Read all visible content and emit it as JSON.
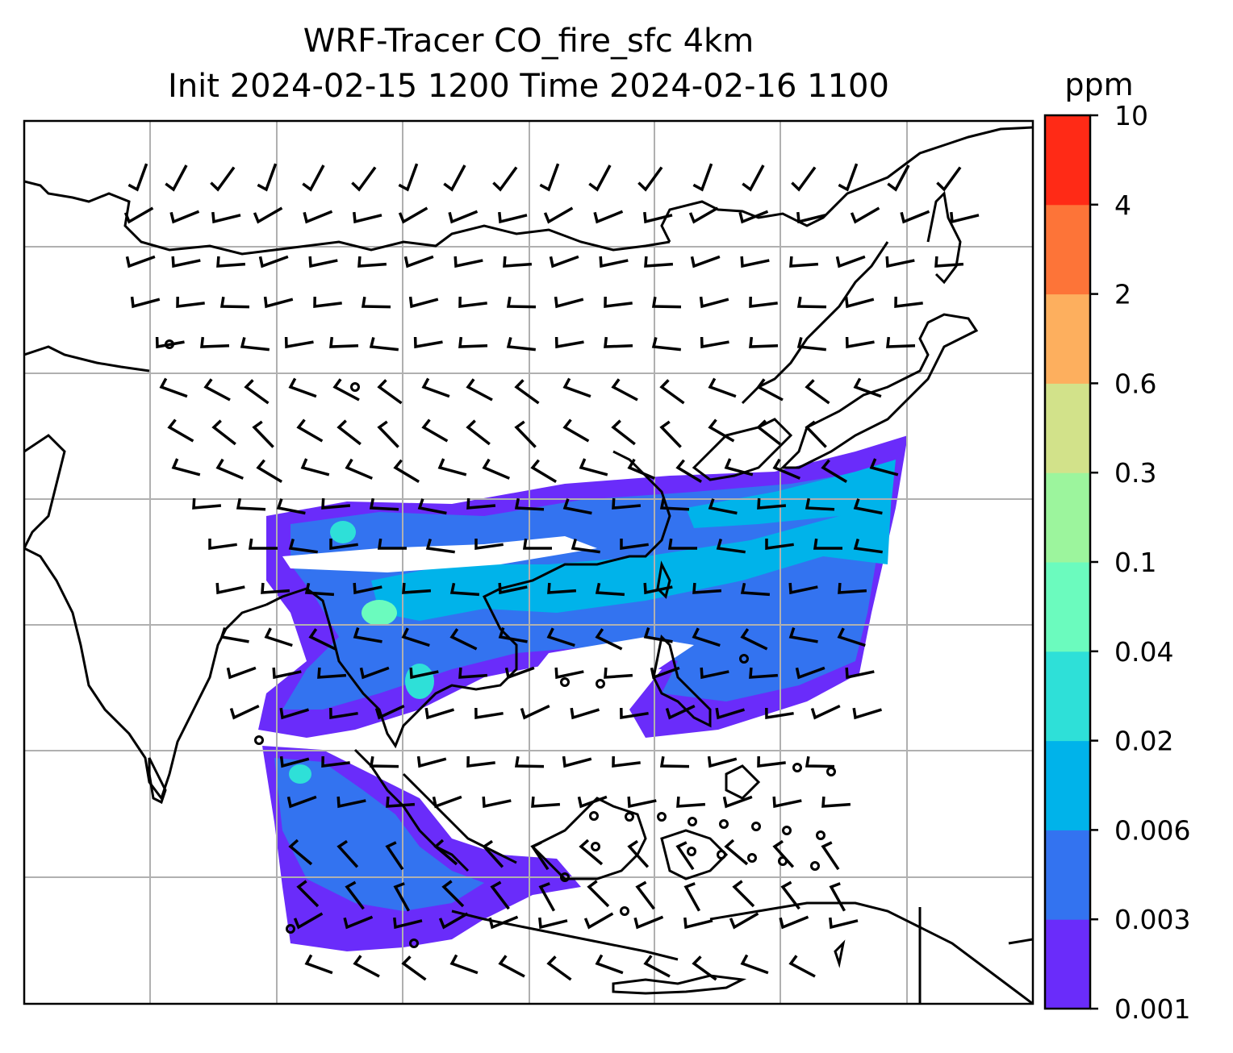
{
  "title": {
    "line1": "WRF-Tracer CO_fire_sfc 4km",
    "line2": "Init 2024-02-15 1200 Time 2024-02-16 1100"
  },
  "colorbar": {
    "unit": "ppm",
    "ticks": [
      "0.001",
      "0.003",
      "0.006",
      "0.02",
      "0.04",
      "0.1",
      "0.3",
      "0.6",
      "2",
      "4",
      "10"
    ],
    "colors": [
      "#6a2cfa",
      "#3373f0",
      "#00b3ea",
      "#2ee0d8",
      "#6bfbbe",
      "#9cf59d",
      "#d2e28a",
      "#fdaf5e",
      "#fd7438",
      "#ff2a16"
    ]
  },
  "map": {
    "feature": "wind-barbs-and-co-fire-tracer",
    "gridlines": true
  }
}
